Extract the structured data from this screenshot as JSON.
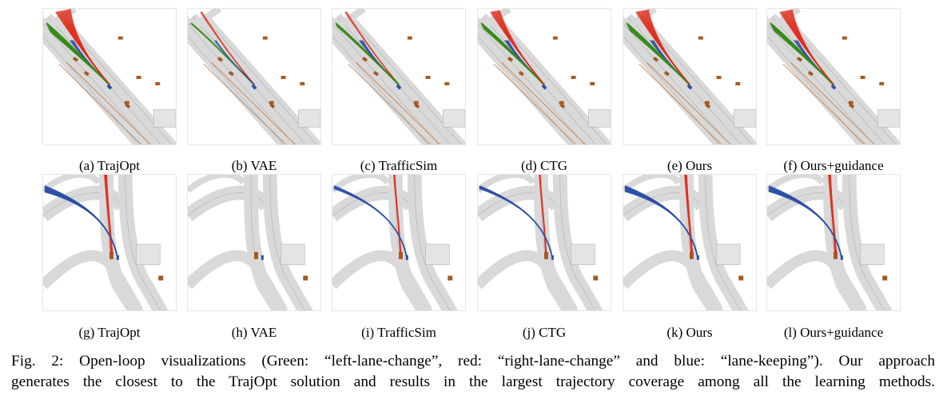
{
  "panels_top": [
    {
      "label": "(a)",
      "method": "TrajOpt",
      "traj": "full"
    },
    {
      "label": "(b)",
      "method": "VAE",
      "traj": "sparse"
    },
    {
      "label": "(c)",
      "method": "TrafficSim",
      "traj": "narrow"
    },
    {
      "label": "(d)",
      "method": "CTG",
      "traj": "medium"
    },
    {
      "label": "(e)",
      "method": "Ours",
      "traj": "wide"
    },
    {
      "label": "(f)",
      "method": "Ours+guidance",
      "traj": "wide"
    }
  ],
  "panels_bottom": [
    {
      "label": "(g)",
      "method": "TrajOpt",
      "traj": "full"
    },
    {
      "label": "(h)",
      "method": "VAE",
      "traj": "none"
    },
    {
      "label": "(i)",
      "method": "TrafficSim",
      "traj": "narrow"
    },
    {
      "label": "(j)",
      "method": "CTG",
      "traj": "narrow"
    },
    {
      "label": "(k)",
      "method": "Ours",
      "traj": "wide"
    },
    {
      "label": "(l)",
      "method": "Ours+guidance",
      "traj": "wide"
    }
  ],
  "caption": {
    "line1": "Fig. 2: Open-loop visualizations (Green: “left-lane-change”, red: “right-lane-change” and blue: “lane-keeping”). Our approach",
    "line2": "generates the closest to the TrajOpt solution and results in the largest trajectory coverage among all the learning methods."
  },
  "colors": {
    "green": "#3a8a1c",
    "red": "#e0301e",
    "blue": "#2b4fa8",
    "road": "#d9d9d9",
    "road_edge": "#b0b0b0",
    "vehicle": "#a8581f"
  }
}
